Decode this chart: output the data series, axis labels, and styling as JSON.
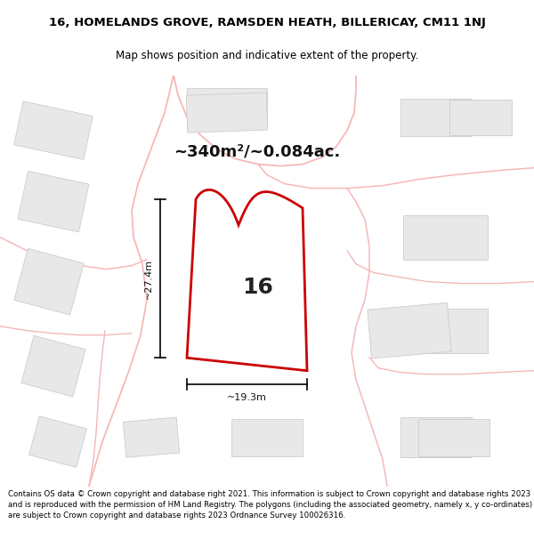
{
  "title_line1": "16, HOMELANDS GROVE, RAMSDEN HEATH, BILLERICAY, CM11 1NJ",
  "title_line2": "Map shows position and indicative extent of the property.",
  "area_text": "~340m²/~0.084ac.",
  "label_number": "16",
  "dim_width": "~19.3m",
  "dim_height": "~27.4m",
  "footer_text": "Contains OS data © Crown copyright and database right 2021. This information is subject to Crown copyright and database rights 2023 and is reproduced with the permission of HM Land Registry. The polygons (including the associated geometry, namely x, y co-ordinates) are subject to Crown copyright and database rights 2023 Ordnance Survey 100026316.",
  "map_bg": "#ffffff",
  "plot_fill": "#ffffff",
  "plot_edge": "#cc0000",
  "road_color": "#f5b8b8",
  "building_fill": "#e8e8e8",
  "building_edge": "#cccccc",
  "bg_color": "#ffffff",
  "title_fontsize": 9.5,
  "subtitle_fontsize": 8.5,
  "area_fontsize": 13,
  "label_fontsize": 18,
  "dim_fontsize": 8,
  "footer_fontsize": 6.2
}
